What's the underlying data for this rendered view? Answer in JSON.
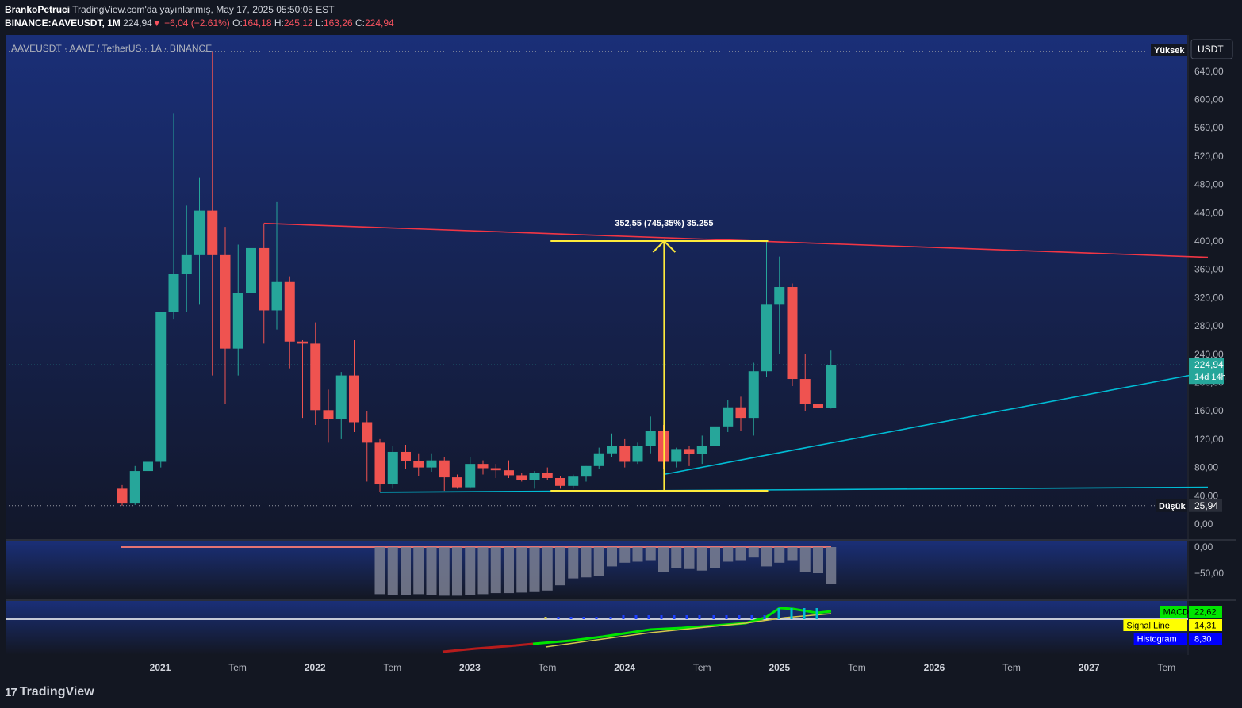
{
  "header": {
    "author": "BrankoPetruci",
    "published": "TradingView.com'da yayınlanmış, May 17, 2025 05:50:05 EST",
    "symbol": "BINANCE:AAVEUSDT, 1M",
    "last": "224,94",
    "change_arrow": "▼",
    "change": "−6,04 (−2.61%)",
    "open_label": "O:",
    "open": "164,18",
    "high_label": "H:",
    "high": "245,12",
    "low_label": "L:",
    "low": "163,26",
    "close_label": "C:",
    "close": "224,94"
  },
  "pane_title": "AAVEUSDT · AAVE / TetherUS · 1A · BINANCE",
  "scale_labels": {
    "currency": "USDT",
    "high_tag": "Yüksek",
    "low_tag": "Düşük",
    "low_value": "25,94",
    "price_tag": "224,94",
    "countdown": "14d 14h"
  },
  "measure_label": "352,55 (745,35%) 35.255",
  "macd_legend": [
    {
      "name": "MACD",
      "value": "22,62",
      "color": "#00e600"
    },
    {
      "name": "Signal Line",
      "value": "14,31",
      "color": "#ffff00"
    },
    {
      "name": "Histogram",
      "value": "8,30",
      "color": "#0000ff"
    }
  ],
  "footer": {
    "logo_mark": "17",
    "brand": "TradingView"
  },
  "colors": {
    "up": "#26a69a",
    "down": "#ef5350",
    "bg": "#131722",
    "pane_bg": "#172a63"
  },
  "chart_data": {
    "type": "candlestick",
    "title": "AAVEUSDT · AAVE / TetherUS · 1A · BINANCE",
    "interval": "1M",
    "ylim": [
      0,
      660
    ],
    "y_ticks": [
      0,
      40,
      80,
      120,
      160,
      200,
      240,
      280,
      320,
      360,
      400,
      440,
      480,
      520,
      560,
      600,
      640
    ],
    "y_tick_labels": [
      "0,00",
      "40,00",
      "80,00",
      "120,00",
      "160,00",
      "200,00",
      "240,00",
      "280,00",
      "320,00",
      "360,00",
      "400,00",
      "440,00",
      "480,00",
      "520,00",
      "560,00",
      "600,00",
      "640,00"
    ],
    "x_labels": [
      "2021",
      "Tem",
      "2022",
      "Tem",
      "2023",
      "Tem",
      "2024",
      "Tem",
      "2025",
      "Tem",
      "2026",
      "Tem",
      "2027",
      "Tem"
    ],
    "candles": [
      {
        "date": "2020-10",
        "o": 50,
        "h": 55,
        "l": 26,
        "c": 29
      },
      {
        "date": "2020-11",
        "o": 29,
        "h": 82,
        "l": 27,
        "c": 75
      },
      {
        "date": "2020-12",
        "o": 75,
        "h": 90,
        "l": 73,
        "c": 88
      },
      {
        "date": "2021-01",
        "o": 88,
        "h": 300,
        "l": 80,
        "c": 300
      },
      {
        "date": "2021-02",
        "o": 300,
        "h": 580,
        "l": 290,
        "c": 353
      },
      {
        "date": "2021-03",
        "o": 353,
        "h": 450,
        "l": 300,
        "c": 380
      },
      {
        "date": "2021-04",
        "o": 380,
        "h": 490,
        "l": 310,
        "c": 443
      },
      {
        "date": "2021-05",
        "o": 443,
        "h": 668,
        "l": 210,
        "c": 380
      },
      {
        "date": "2021-06",
        "o": 380,
        "h": 420,
        "l": 170,
        "c": 248
      },
      {
        "date": "2021-07",
        "o": 248,
        "h": 395,
        "l": 210,
        "c": 327
      },
      {
        "date": "2021-08",
        "o": 327,
        "h": 450,
        "l": 270,
        "c": 390
      },
      {
        "date": "2021-09",
        "o": 390,
        "h": 425,
        "l": 255,
        "c": 302
      },
      {
        "date": "2021-10",
        "o": 302,
        "h": 455,
        "l": 275,
        "c": 342
      },
      {
        "date": "2021-11",
        "o": 342,
        "h": 350,
        "l": 220,
        "c": 258
      },
      {
        "date": "2021-12",
        "o": 258,
        "h": 260,
        "l": 150,
        "c": 255
      },
      {
        "date": "2022-01",
        "o": 255,
        "h": 285,
        "l": 140,
        "c": 161
      },
      {
        "date": "2022-02",
        "o": 161,
        "h": 190,
        "l": 115,
        "c": 149
      },
      {
        "date": "2022-03",
        "o": 149,
        "h": 215,
        "l": 120,
        "c": 210
      },
      {
        "date": "2022-04",
        "o": 210,
        "h": 260,
        "l": 130,
        "c": 144
      },
      {
        "date": "2022-05",
        "o": 144,
        "h": 160,
        "l": 60,
        "c": 115
      },
      {
        "date": "2022-06",
        "o": 115,
        "h": 120,
        "l": 45,
        "c": 56
      },
      {
        "date": "2022-07",
        "o": 56,
        "h": 110,
        "l": 50,
        "c": 102
      },
      {
        "date": "2022-08",
        "o": 102,
        "h": 112,
        "l": 78,
        "c": 89
      },
      {
        "date": "2022-09",
        "o": 89,
        "h": 100,
        "l": 68,
        "c": 80
      },
      {
        "date": "2022-10",
        "o": 80,
        "h": 100,
        "l": 74,
        "c": 90
      },
      {
        "date": "2022-11",
        "o": 90,
        "h": 95,
        "l": 47,
        "c": 66
      },
      {
        "date": "2022-12",
        "o": 66,
        "h": 70,
        "l": 50,
        "c": 52
      },
      {
        "date": "2023-01",
        "o": 52,
        "h": 95,
        "l": 50,
        "c": 85
      },
      {
        "date": "2023-02",
        "o": 85,
        "h": 90,
        "l": 70,
        "c": 79
      },
      {
        "date": "2023-03",
        "o": 79,
        "h": 85,
        "l": 65,
        "c": 76
      },
      {
        "date": "2023-04",
        "o": 76,
        "h": 90,
        "l": 65,
        "c": 69
      },
      {
        "date": "2023-05",
        "o": 69,
        "h": 72,
        "l": 60,
        "c": 62
      },
      {
        "date": "2023-06",
        "o": 62,
        "h": 75,
        "l": 50,
        "c": 72
      },
      {
        "date": "2023-07",
        "o": 72,
        "h": 80,
        "l": 62,
        "c": 65
      },
      {
        "date": "2023-08",
        "o": 65,
        "h": 68,
        "l": 50,
        "c": 54
      },
      {
        "date": "2023-09",
        "o": 54,
        "h": 70,
        "l": 50,
        "c": 67
      },
      {
        "date": "2023-10",
        "o": 67,
        "h": 82,
        "l": 60,
        "c": 82
      },
      {
        "date": "2023-11",
        "o": 82,
        "h": 108,
        "l": 78,
        "c": 100
      },
      {
        "date": "2023-12",
        "o": 100,
        "h": 128,
        "l": 95,
        "c": 110
      },
      {
        "date": "2024-01",
        "o": 110,
        "h": 120,
        "l": 80,
        "c": 88
      },
      {
        "date": "2024-02",
        "o": 88,
        "h": 115,
        "l": 85,
        "c": 110
      },
      {
        "date": "2024-03",
        "o": 110,
        "h": 152,
        "l": 100,
        "c": 132
      },
      {
        "date": "2024-04",
        "o": 132,
        "h": 140,
        "l": 78,
        "c": 88
      },
      {
        "date": "2024-05",
        "o": 88,
        "h": 108,
        "l": 80,
        "c": 106
      },
      {
        "date": "2024-06",
        "o": 106,
        "h": 110,
        "l": 82,
        "c": 99
      },
      {
        "date": "2024-07",
        "o": 99,
        "h": 125,
        "l": 85,
        "c": 110
      },
      {
        "date": "2024-08",
        "o": 110,
        "h": 140,
        "l": 75,
        "c": 138
      },
      {
        "date": "2024-09",
        "o": 138,
        "h": 175,
        "l": 130,
        "c": 165
      },
      {
        "date": "2024-10",
        "o": 165,
        "h": 180,
        "l": 132,
        "c": 150
      },
      {
        "date": "2024-11",
        "o": 150,
        "h": 228,
        "l": 125,
        "c": 216
      },
      {
        "date": "2024-12",
        "o": 216,
        "h": 400,
        "l": 208,
        "c": 310
      },
      {
        "date": "2025-01",
        "o": 310,
        "h": 378,
        "l": 240,
        "c": 335
      },
      {
        "date": "2025-02",
        "o": 335,
        "h": 340,
        "l": 195,
        "c": 205
      },
      {
        "date": "2025-03",
        "o": 205,
        "h": 240,
        "l": 160,
        "c": 170
      },
      {
        "date": "2025-04",
        "o": 170,
        "h": 185,
        "l": 114,
        "c": 164
      },
      {
        "date": "2025-05",
        "o": 164.18,
        "h": 245.12,
        "l": 163.26,
        "c": 224.94
      }
    ],
    "trendlines": [
      {
        "name": "resistance",
        "color": "#f23645",
        "from": {
          "date": "2021-09",
          "y": 425
        },
        "to": {
          "date": "2027-10",
          "y": 377
        }
      },
      {
        "name": "rising-support",
        "color": "#00bcd4",
        "from": {
          "date": "2024-04",
          "y": 70
        },
        "to": {
          "date": "2027-10",
          "y": 215
        }
      },
      {
        "name": "base-support",
        "color": "#00bcd4",
        "from": {
          "date": "2022-06",
          "y": 45
        },
        "to": {
          "date": "2027-10",
          "y": 52
        }
      }
    ],
    "measure": {
      "from": {
        "date": "2023-07",
        "y": 47
      },
      "to": {
        "date": "2024-12",
        "y": 400
      },
      "label": "352,55 (745,35%) 35.255"
    },
    "lower_pane": {
      "y_tick_labels": [
        "0,00",
        "−50,00"
      ],
      "y_ticks": [
        0,
        -50
      ]
    },
    "macd": {
      "macd": 22.62,
      "signal": 14.31,
      "histogram": 8.3
    }
  }
}
